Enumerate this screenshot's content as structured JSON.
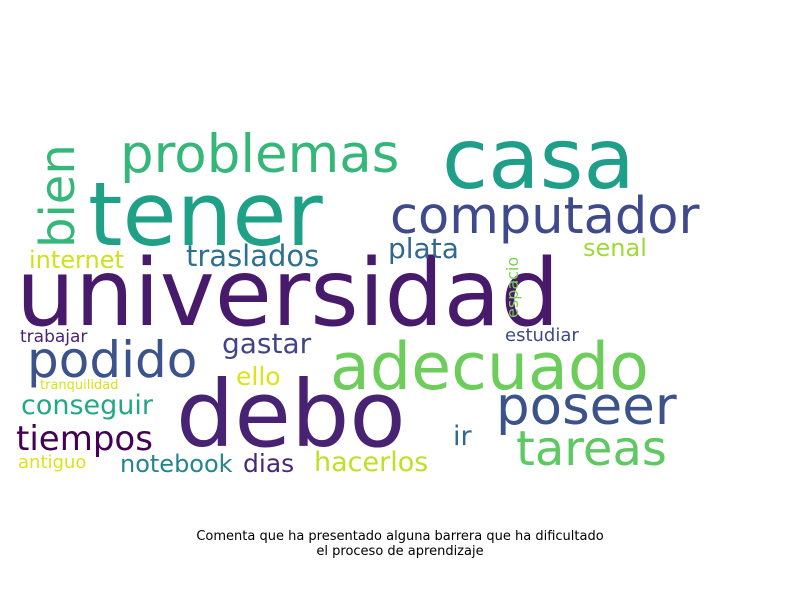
{
  "chart_data": {
    "type": "wordcloud",
    "title_lines": [
      "Comenta que ha presentado alguna barrera que ha dificultado",
      "el proceso de aprendizaje"
    ],
    "words": [
      {
        "text": "universidad",
        "weight": 100,
        "color": "#481a6c",
        "rotate": 0
      },
      {
        "text": "debo",
        "weight": 92,
        "color": "#482374",
        "rotate": 0
      },
      {
        "text": "tener",
        "weight": 88,
        "color": "#1fa187",
        "rotate": 0
      },
      {
        "text": "casa",
        "weight": 84,
        "color": "#1f9e89",
        "rotate": 0
      },
      {
        "text": "adecuado",
        "weight": 60,
        "color": "#6ccd5a",
        "rotate": 0
      },
      {
        "text": "problemas",
        "weight": 50,
        "color": "#35b779",
        "rotate": 0
      },
      {
        "text": "computador",
        "weight": 48,
        "color": "#3e4a89",
        "rotate": 0
      },
      {
        "text": "poseer",
        "weight": 48,
        "color": "#3b528b",
        "rotate": 0
      },
      {
        "text": "podido",
        "weight": 46,
        "color": "#3b528b",
        "rotate": 0
      },
      {
        "text": "tareas",
        "weight": 45,
        "color": "#5ec962",
        "rotate": 0
      },
      {
        "text": "bien",
        "weight": 44,
        "color": "#35b779",
        "rotate": -90
      },
      {
        "text": "tiempos",
        "weight": 32,
        "color": "#440154",
        "rotate": 0
      },
      {
        "text": "traslados",
        "weight": 28,
        "color": "#2c728e",
        "rotate": 0
      },
      {
        "text": "hacerlos",
        "weight": 27,
        "color": "#c2df23",
        "rotate": 0
      },
      {
        "text": "plata",
        "weight": 27,
        "color": "#31688e",
        "rotate": 0
      },
      {
        "text": "gastar",
        "weight": 26,
        "color": "#414487",
        "rotate": 0
      },
      {
        "text": "conseguir",
        "weight": 26,
        "color": "#22a884",
        "rotate": 0
      },
      {
        "text": "ir",
        "weight": 25,
        "color": "#31688e",
        "rotate": 0
      },
      {
        "text": "notebook",
        "weight": 24,
        "color": "#25858e",
        "rotate": 0
      },
      {
        "text": "dias",
        "weight": 24,
        "color": "#482878",
        "rotate": 0
      },
      {
        "text": "ello",
        "weight": 24,
        "color": "#dde318",
        "rotate": 0
      },
      {
        "text": "senal",
        "weight": 23,
        "color": "#a0da39",
        "rotate": 0
      },
      {
        "text": "internet",
        "weight": 23,
        "color": "#d0e11c",
        "rotate": 0
      },
      {
        "text": "estudiar",
        "weight": 17,
        "color": "#3e4989",
        "rotate": 0
      },
      {
        "text": "antiguo",
        "weight": 17,
        "color": "#dde318",
        "rotate": 0
      },
      {
        "text": "trabajar",
        "weight": 16,
        "color": "#482475",
        "rotate": 0
      },
      {
        "text": "espacio",
        "weight": 15,
        "color": "#7ad151",
        "rotate": -90
      },
      {
        "text": "tranquilidad",
        "weight": 13,
        "color": "#d8e219",
        "rotate": 0
      }
    ]
  }
}
